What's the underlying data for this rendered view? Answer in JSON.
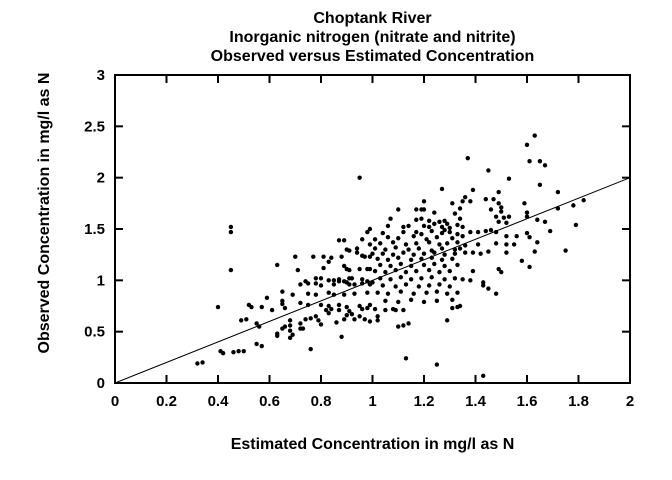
{
  "figure": {
    "background": "#ffffff",
    "foreground": "#000000",
    "title_lines": [
      "Choptank River",
      "Inorganic nitrogen (nitrate and nitrite)",
      "Observed versus Estimated Concentration"
    ]
  },
  "chart_data": {
    "type": "scatter",
    "title": "Choptank River",
    "subtitle": "Inorganic nitrogen (nitrate and nitrite) — Observed versus Estimated Concentration",
    "xlabel": "Estimated Concentration in mg/l as N",
    "ylabel": "Observed Concentration in mg/l as N",
    "xlim": [
      0,
      2
    ],
    "ylim": [
      0,
      3
    ],
    "grid": false,
    "legend": "none",
    "marker": {
      "shape": "filled-circle",
      "color": "#000000",
      "radius_px": 2.2
    },
    "reference_line": {
      "name": "1:1 line",
      "from": [
        0,
        0
      ],
      "to": [
        2,
        2
      ],
      "color": "#000000"
    },
    "xticks": {
      "values": [
        0,
        0.2,
        0.4,
        0.6,
        0.8,
        1,
        1.2,
        1.4,
        1.6,
        1.8,
        2
      ],
      "labels": [
        "0",
        "0.2",
        "0.4",
        "0.6",
        "0.8",
        "1",
        "1.2",
        "1.4",
        "1.6",
        "1.8",
        "2"
      ]
    },
    "yticks": {
      "values": [
        0,
        0.5,
        1,
        1.5,
        2,
        2.5,
        3
      ],
      "labels": [
        "0",
        "0.5",
        "1",
        "1.5",
        "2",
        "2.5",
        "3"
      ]
    },
    "points": [
      [
        0.45,
        1.52
      ],
      [
        0.95,
        2.0
      ],
      [
        1.27,
        1.89
      ],
      [
        1.2,
        1.77
      ],
      [
        1.1,
        1.69
      ],
      [
        1.17,
        1.69
      ],
      [
        1.19,
        1.69
      ],
      [
        1.2,
        1.69
      ],
      [
        1.24,
        1.66
      ],
      [
        1.31,
        1.75
      ],
      [
        1.32,
        1.65
      ],
      [
        1.07,
        1.6
      ],
      [
        1.17,
        1.59
      ],
      [
        1.22,
        1.58
      ],
      [
        1.24,
        1.55
      ],
      [
        1.26,
        1.57
      ],
      [
        1.28,
        1.58
      ],
      [
        1.29,
        1.55
      ],
      [
        1.19,
        1.6
      ],
      [
        1.06,
        1.53
      ],
      [
        1.12,
        1.52
      ],
      [
        1.14,
        1.53
      ],
      [
        1.2,
        1.53
      ],
      [
        1.22,
        1.52
      ],
      [
        1.27,
        1.52
      ],
      [
        1.3,
        1.51
      ],
      [
        1.33,
        1.54
      ],
      [
        0.99,
        1.5
      ],
      [
        1.28,
        1.49
      ],
      [
        1.17,
        1.47
      ],
      [
        1.04,
        1.46
      ],
      [
        1.63,
        2.41
      ],
      [
        1.6,
        2.32
      ],
      [
        1.65,
        2.16
      ],
      [
        1.61,
        2.16
      ],
      [
        1.67,
        2.12
      ],
      [
        1.37,
        2.19
      ],
      [
        1.45,
        2.07
      ],
      [
        1.53,
        1.99
      ],
      [
        1.65,
        1.93
      ],
      [
        1.72,
        1.86
      ],
      [
        1.39,
        1.88
      ],
      [
        1.36,
        1.81
      ],
      [
        1.38,
        1.77
      ],
      [
        1.44,
        1.79
      ],
      [
        1.47,
        1.79
      ],
      [
        1.49,
        1.86
      ],
      [
        1.49,
        1.75
      ],
      [
        1.46,
        1.69
      ],
      [
        1.5,
        1.71
      ],
      [
        1.5,
        1.67
      ],
      [
        1.48,
        1.62
      ],
      [
        1.51,
        1.61
      ],
      [
        1.53,
        1.62
      ],
      [
        1.49,
        1.57
      ],
      [
        1.52,
        1.56
      ],
      [
        1.59,
        1.75
      ],
      [
        1.6,
        1.66
      ],
      [
        1.6,
        1.62
      ],
      [
        1.64,
        1.59
      ],
      [
        1.67,
        1.57
      ],
      [
        1.72,
        1.7
      ],
      [
        1.82,
        1.78
      ],
      [
        1.78,
        1.73
      ],
      [
        1.79,
        1.54
      ],
      [
        1.34,
        1.7
      ],
      [
        1.35,
        1.77
      ],
      [
        1.34,
        1.6
      ],
      [
        1.35,
        1.52
      ],
      [
        0.45,
        1.47
      ],
      [
        0.45,
        1.1
      ],
      [
        0.63,
        1.15
      ],
      [
        0.4,
        0.74
      ],
      [
        0.52,
        0.76
      ],
      [
        0.53,
        0.74
      ],
      [
        0.57,
        0.74
      ],
      [
        0.59,
        0.83
      ],
      [
        0.61,
        0.71
      ],
      [
        0.65,
        0.89
      ],
      [
        0.65,
        0.8
      ],
      [
        0.65,
        0.77
      ],
      [
        0.49,
        0.61
      ],
      [
        0.51,
        0.62
      ],
      [
        0.55,
        0.58
      ],
      [
        0.56,
        0.55
      ],
      [
        0.57,
        0.36
      ],
      [
        0.55,
        0.38
      ],
      [
        0.63,
        0.46
      ],
      [
        0.63,
        0.48
      ],
      [
        0.65,
        0.53
      ],
      [
        0.66,
        0.55
      ],
      [
        0.42,
        0.29
      ],
      [
        0.41,
        0.31
      ],
      [
        0.46,
        0.3
      ],
      [
        0.48,
        0.31
      ],
      [
        0.5,
        0.31
      ],
      [
        0.32,
        0.19
      ],
      [
        0.34,
        0.2
      ],
      [
        0.98,
        1.47
      ],
      [
        0.87,
        1.39
      ],
      [
        0.89,
        1.39
      ],
      [
        0.96,
        1.4
      ],
      [
        0.99,
        1.35
      ],
      [
        0.9,
        1.3
      ],
      [
        0.94,
        1.31
      ],
      [
        0.91,
        1.29
      ],
      [
        0.94,
        1.27
      ],
      [
        0.7,
        1.23
      ],
      [
        0.77,
        1.23
      ],
      [
        0.81,
        1.23
      ],
      [
        0.84,
        1.22
      ],
      [
        0.88,
        1.23
      ],
      [
        0.96,
        1.24
      ],
      [
        0.97,
        1.23
      ],
      [
        0.99,
        1.23
      ],
      [
        0.71,
        1.1
      ],
      [
        0.81,
        1.12
      ],
      [
        0.83,
        1.18
      ],
      [
        0.89,
        1.14
      ],
      [
        0.9,
        1.11
      ],
      [
        0.91,
        1.1
      ],
      [
        0.95,
        1.11
      ],
      [
        0.98,
        1.11
      ],
      [
        0.99,
        1.11
      ],
      [
        1.0,
        1.26
      ],
      [
        0.78,
        1.02
      ],
      [
        0.8,
        1.02
      ],
      [
        0.83,
        1.0
      ],
      [
        0.85,
        1.0
      ],
      [
        0.87,
        1.01
      ],
      [
        0.89,
        0.99
      ],
      [
        0.91,
        1.02
      ],
      [
        0.92,
        1.02
      ],
      [
        0.96,
        1.01
      ],
      [
        0.98,
        0.99
      ],
      [
        1.0,
        0.98
      ],
      [
        0.74,
        0.99
      ],
      [
        0.75,
        0.97
      ],
      [
        0.78,
        0.97
      ],
      [
        0.8,
        0.95
      ],
      [
        0.85,
        0.96
      ],
      [
        0.87,
        0.99
      ],
      [
        0.9,
        0.98
      ],
      [
        0.91,
        0.96
      ],
      [
        0.93,
        0.96
      ],
      [
        0.96,
        0.97
      ],
      [
        0.99,
        0.96
      ],
      [
        0.72,
        0.96
      ],
      [
        0.69,
        0.86
      ],
      [
        0.75,
        0.87
      ],
      [
        0.78,
        0.86
      ],
      [
        0.83,
        0.88
      ],
      [
        0.85,
        0.86
      ],
      [
        0.89,
        0.86
      ],
      [
        0.93,
        0.87
      ],
      [
        0.98,
        0.88
      ],
      [
        0.72,
        0.78
      ],
      [
        0.75,
        0.76
      ],
      [
        0.8,
        0.76
      ],
      [
        0.83,
        0.75
      ],
      [
        0.87,
        0.76
      ],
      [
        0.9,
        0.74
      ],
      [
        0.95,
        0.75
      ],
      [
        0.99,
        0.76
      ],
      [
        0.66,
        0.73
      ],
      [
        1.12,
        1.47
      ],
      [
        1.19,
        1.45
      ],
      [
        1.23,
        1.48
      ],
      [
        1.27,
        1.46
      ],
      [
        1.3,
        1.47
      ],
      [
        1.33,
        1.45
      ],
      [
        1.01,
        1.4
      ],
      [
        1.06,
        1.42
      ],
      [
        1.1,
        1.41
      ],
      [
        1.16,
        1.43
      ],
      [
        1.21,
        1.4
      ],
      [
        1.25,
        1.42
      ],
      [
        1.31,
        1.41
      ],
      [
        1.03,
        1.36
      ],
      [
        1.08,
        1.37
      ],
      [
        1.13,
        1.35
      ],
      [
        1.17,
        1.36
      ],
      [
        1.22,
        1.37
      ],
      [
        1.26,
        1.35
      ],
      [
        1.29,
        1.36
      ],
      [
        1.33,
        1.37
      ],
      [
        1.01,
        1.31
      ],
      [
        1.05,
        1.3
      ],
      [
        1.09,
        1.32
      ],
      [
        1.14,
        1.3
      ],
      [
        1.18,
        1.31
      ],
      [
        1.23,
        1.29
      ],
      [
        1.27,
        1.31
      ],
      [
        1.32,
        1.3
      ],
      [
        1.04,
        1.26
      ],
      [
        1.08,
        1.25
      ],
      [
        1.12,
        1.27
      ],
      [
        1.16,
        1.25
      ],
      [
        1.2,
        1.26
      ],
      [
        1.24,
        1.27
      ],
      [
        1.28,
        1.25
      ],
      [
        1.32,
        1.26
      ],
      [
        1.02,
        1.21
      ],
      [
        1.06,
        1.2
      ],
      [
        1.1,
        1.22
      ],
      [
        1.15,
        1.2
      ],
      [
        1.19,
        1.21
      ],
      [
        1.23,
        1.22
      ],
      [
        1.27,
        1.2
      ],
      [
        1.31,
        1.21
      ],
      [
        1.03,
        1.15
      ],
      [
        1.07,
        1.14
      ],
      [
        1.11,
        1.16
      ],
      [
        1.15,
        1.14
      ],
      [
        1.2,
        1.15
      ],
      [
        1.24,
        1.16
      ],
      [
        1.28,
        1.14
      ],
      [
        1.33,
        1.15
      ],
      [
        1.01,
        1.09
      ],
      [
        1.05,
        1.08
      ],
      [
        1.09,
        1.1
      ],
      [
        1.13,
        1.08
      ],
      [
        1.17,
        1.09
      ],
      [
        1.22,
        1.1
      ],
      [
        1.26,
        1.08
      ],
      [
        1.3,
        1.09
      ],
      [
        1.03,
        1.02
      ],
      [
        1.07,
        1.01
      ],
      [
        1.11,
        1.03
      ],
      [
        1.15,
        1.01
      ],
      [
        1.19,
        1.02
      ],
      [
        1.23,
        1.03
      ],
      [
        1.28,
        1.01
      ],
      [
        1.32,
        1.02
      ],
      [
        1.04,
        0.95
      ],
      [
        1.09,
        0.94
      ],
      [
        1.13,
        0.96
      ],
      [
        1.18,
        0.94
      ],
      [
        1.22,
        0.95
      ],
      [
        1.26,
        0.96
      ],
      [
        1.3,
        0.94
      ],
      [
        1.02,
        0.88
      ],
      [
        1.06,
        0.87
      ],
      [
        1.11,
        0.89
      ],
      [
        1.16,
        0.87
      ],
      [
        1.21,
        0.88
      ],
      [
        1.25,
        0.89
      ],
      [
        1.29,
        0.87
      ],
      [
        1.33,
        0.88
      ],
      [
        1.05,
        0.8
      ],
      [
        1.1,
        0.79
      ],
      [
        1.15,
        0.81
      ],
      [
        1.2,
        0.79
      ],
      [
        1.25,
        0.8
      ],
      [
        1.31,
        0.81
      ],
      [
        0.68,
        0.61
      ],
      [
        0.68,
        0.56
      ],
      [
        0.68,
        0.51
      ],
      [
        0.69,
        0.47
      ],
      [
        0.68,
        0.44
      ],
      [
        0.72,
        0.58
      ],
      [
        0.74,
        0.62
      ],
      [
        0.76,
        0.63
      ],
      [
        0.72,
        0.53
      ],
      [
        0.73,
        0.53
      ],
      [
        0.78,
        0.65
      ],
      [
        0.79,
        0.61
      ],
      [
        0.8,
        0.57
      ],
      [
        0.82,
        0.71
      ],
      [
        0.83,
        0.68
      ],
      [
        0.84,
        0.72
      ],
      [
        0.87,
        0.71
      ],
      [
        0.86,
        0.59
      ],
      [
        0.88,
        0.45
      ],
      [
        0.89,
        0.62
      ],
      [
        0.9,
        0.66
      ],
      [
        0.91,
        0.7
      ],
      [
        0.92,
        0.67
      ],
      [
        0.93,
        0.62
      ],
      [
        0.95,
        0.65
      ],
      [
        0.96,
        0.72
      ],
      [
        0.98,
        0.73
      ],
      [
        0.97,
        0.62
      ],
      [
        0.99,
        0.6
      ],
      [
        0.76,
        0.33
      ],
      [
        1.01,
        0.72
      ],
      [
        1.02,
        0.65
      ],
      [
        1.02,
        0.61
      ],
      [
        1.05,
        0.71
      ],
      [
        1.08,
        0.72
      ],
      [
        1.09,
        0.71
      ],
      [
        1.12,
        0.71
      ],
      [
        1.1,
        0.55
      ],
      [
        1.12,
        0.56
      ],
      [
        1.14,
        0.58
      ],
      [
        1.29,
        0.61
      ],
      [
        1.31,
        0.73
      ],
      [
        1.33,
        0.74
      ],
      [
        1.13,
        0.24
      ],
      [
        1.25,
        0.18
      ],
      [
        1.43,
        0.07
      ],
      [
        1.35,
        1.43
      ],
      [
        1.38,
        1.47
      ],
      [
        1.41,
        1.47
      ],
      [
        1.44,
        1.48
      ],
      [
        1.46,
        1.49
      ],
      [
        1.48,
        1.47
      ],
      [
        1.52,
        1.43
      ],
      [
        1.56,
        1.43
      ],
      [
        1.6,
        1.46
      ],
      [
        1.61,
        1.42
      ],
      [
        1.69,
        1.48
      ],
      [
        1.64,
        1.37
      ],
      [
        1.55,
        1.35
      ],
      [
        1.52,
        1.35
      ],
      [
        1.48,
        1.36
      ],
      [
        1.41,
        1.35
      ],
      [
        1.36,
        1.34
      ],
      [
        1.34,
        1.31
      ],
      [
        1.36,
        1.27
      ],
      [
        1.39,
        1.27
      ],
      [
        1.42,
        1.26
      ],
      [
        1.45,
        1.28
      ],
      [
        1.52,
        1.27
      ],
      [
        1.75,
        1.29
      ],
      [
        1.63,
        1.28
      ],
      [
        1.58,
        1.19
      ],
      [
        1.61,
        1.13
      ],
      [
        1.49,
        1.11
      ],
      [
        1.5,
        1.08
      ],
      [
        1.39,
        1.09
      ],
      [
        1.35,
        1.01
      ],
      [
        1.38,
        1.0
      ],
      [
        1.43,
        0.98
      ],
      [
        1.43,
        0.95
      ],
      [
        1.45,
        0.92
      ],
      [
        1.48,
        0.87
      ],
      [
        1.34,
        0.75
      ]
    ]
  }
}
